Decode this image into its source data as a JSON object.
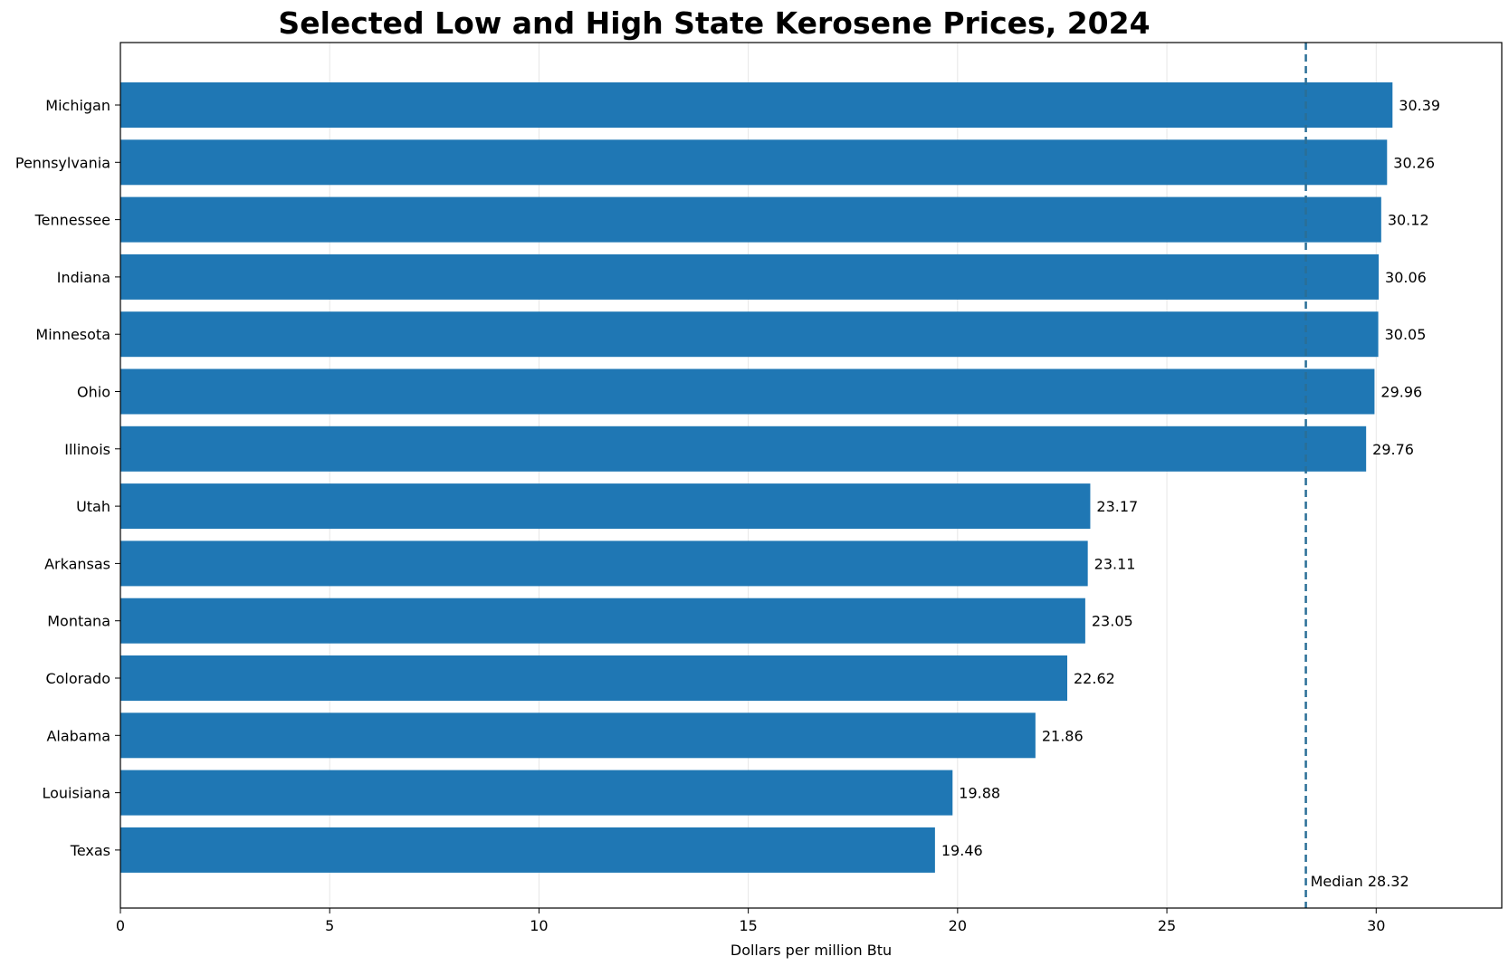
{
  "chart_data": {
    "type": "bar",
    "orientation": "horizontal",
    "title": "Selected Low and High State Kerosene Prices, 2024",
    "xlabel": "Dollars per million Btu",
    "ylabel": "",
    "xlim": [
      0,
      33
    ],
    "xticks": [
      0,
      5,
      10,
      15,
      20,
      25,
      30
    ],
    "grid": "vertical",
    "bar_color": "#1f77b4",
    "categories": [
      "Michigan",
      "Pennsylvania",
      "Tennessee",
      "Indiana",
      "Minnesota",
      "Ohio",
      "Illinois",
      "Utah",
      "Arkansas",
      "Montana",
      "Colorado",
      "Alabama",
      "Louisiana",
      "Texas"
    ],
    "values": [
      30.39,
      30.26,
      30.12,
      30.06,
      30.05,
      29.96,
      29.76,
      23.17,
      23.11,
      23.05,
      22.62,
      21.86,
      19.88,
      19.46
    ],
    "value_labels": [
      "30.39",
      "30.26",
      "30.12",
      "30.06",
      "30.05",
      "29.96",
      "29.76",
      "23.17",
      "23.11",
      "23.05",
      "22.62",
      "21.86",
      "19.88",
      "19.46"
    ],
    "reference_line": {
      "value": 28.32,
      "label": "Median 28.32",
      "color": "#2a6f97",
      "style": "dashed"
    }
  }
}
